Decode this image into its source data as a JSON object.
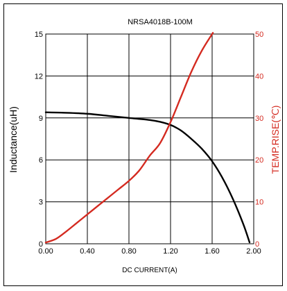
{
  "chart_data": {
    "type": "line",
    "title": "NRSA4018B-100M",
    "xlabel": "DC CURRENT(A)",
    "ylabel_left": "Inductance(uH)",
    "ylabel_right": "TEMP.RISE(℃)",
    "xlim": [
      0,
      2.0
    ],
    "ylim_left": [
      0,
      15
    ],
    "ylim_right": [
      0,
      50
    ],
    "x_ticks": [
      "0.00",
      "0.40",
      "0.80",
      "1.20",
      "1.60",
      "2.00"
    ],
    "y_left_ticks": [
      "0",
      "3",
      "6",
      "9",
      "12",
      "15"
    ],
    "y_right_ticks": [
      "0",
      "10",
      "20",
      "30",
      "40",
      "50"
    ],
    "grid": true,
    "colors": {
      "inductance": "#000000",
      "temp_rise": "#d42a20",
      "grid": "#000000"
    },
    "series": [
      {
        "axis": "left",
        "x": [
          0.0,
          0.2,
          0.4,
          0.6,
          0.8,
          1.0,
          1.1,
          1.2,
          1.3,
          1.4,
          1.5,
          1.6,
          1.7,
          1.8,
          1.9,
          1.96
        ],
        "values": [
          9.4,
          9.37,
          9.3,
          9.15,
          9.0,
          8.85,
          8.72,
          8.5,
          8.1,
          7.5,
          6.8,
          5.9,
          4.7,
          3.2,
          1.4,
          0.1
        ]
      },
      {
        "axis": "right",
        "x": [
          0.0,
          0.1,
          0.2,
          0.3,
          0.4,
          0.5,
          0.6,
          0.7,
          0.8,
          0.9,
          1.0,
          1.1,
          1.2,
          1.3,
          1.4,
          1.5,
          1.6,
          1.66
        ],
        "values": [
          0.3,
          1.2,
          3.0,
          5.0,
          7.0,
          9.0,
          11.0,
          13.0,
          15.0,
          17.5,
          21.0,
          24.0,
          29.0,
          35.0,
          41.0,
          46.0,
          50.0,
          52.0
        ]
      }
    ]
  }
}
